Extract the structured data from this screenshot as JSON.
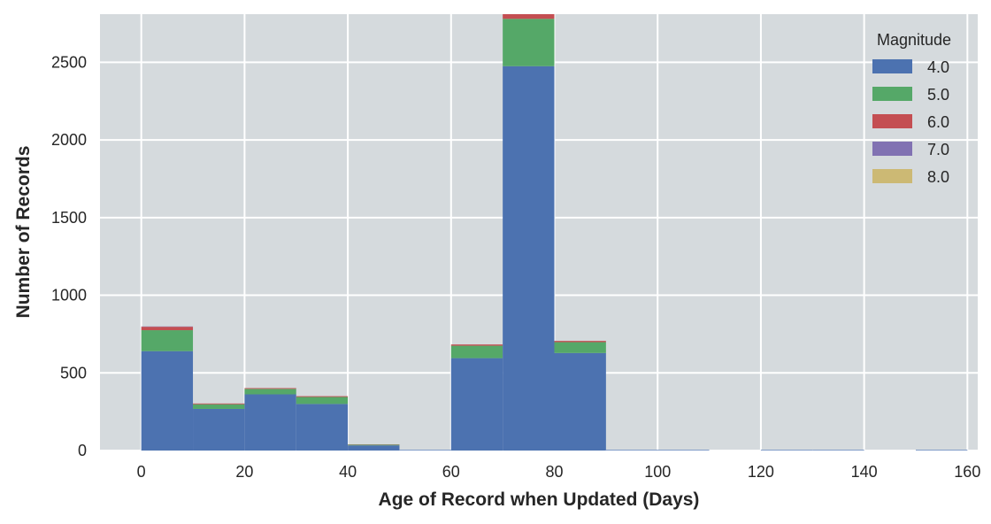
{
  "chart_data": {
    "type": "bar",
    "stacked": true,
    "title": "",
    "xlabel": "Age of Record when Updated (Days)",
    "ylabel": "Number of Records",
    "xlim": [
      -8,
      162
    ],
    "ylim": [
      0,
      2810
    ],
    "xticks": [
      0,
      20,
      40,
      60,
      80,
      100,
      120,
      140,
      160
    ],
    "yticks": [
      0,
      500,
      1000,
      1500,
      2000,
      2500
    ],
    "grid": true,
    "background": "#d5dadd",
    "legend": {
      "title": "Magnitude",
      "position": "top-right"
    },
    "bins": [
      [
        0,
        10
      ],
      [
        10,
        20
      ],
      [
        20,
        30
      ],
      [
        30,
        40
      ],
      [
        40,
        50
      ],
      [
        50,
        60
      ],
      [
        60,
        70
      ],
      [
        70,
        80
      ],
      [
        80,
        90
      ],
      [
        90,
        100
      ],
      [
        100,
        110
      ],
      [
        110,
        120
      ],
      [
        120,
        130
      ],
      [
        130,
        140
      ],
      [
        140,
        150
      ],
      [
        150,
        160
      ]
    ],
    "series": [
      {
        "name": "4.0",
        "color": "#4c72b0",
        "values": [
          640,
          268,
          362,
          300,
          33,
          4,
          595,
          2475,
          628,
          4,
          4,
          0,
          4,
          4,
          0,
          4
        ]
      },
      {
        "name": "5.0",
        "color": "#55a868",
        "values": [
          135,
          30,
          35,
          45,
          5,
          0,
          80,
          305,
          70,
          0,
          0,
          0,
          0,
          0,
          0,
          0
        ]
      },
      {
        "name": "6.0",
        "color": "#c44e52",
        "values": [
          22,
          5,
          5,
          5,
          2,
          0,
          8,
          30,
          8,
          0,
          0,
          0,
          0,
          0,
          0,
          0
        ]
      },
      {
        "name": "7.0",
        "color": "#8172b2",
        "values": [
          2,
          0,
          0,
          0,
          0,
          0,
          0,
          2,
          0,
          0,
          0,
          0,
          0,
          0,
          0,
          0
        ]
      },
      {
        "name": "8.0",
        "color": "#ccb974",
        "values": [
          0,
          0,
          0,
          0,
          0,
          0,
          0,
          0,
          0,
          0,
          0,
          0,
          0,
          0,
          0,
          0
        ]
      }
    ]
  }
}
